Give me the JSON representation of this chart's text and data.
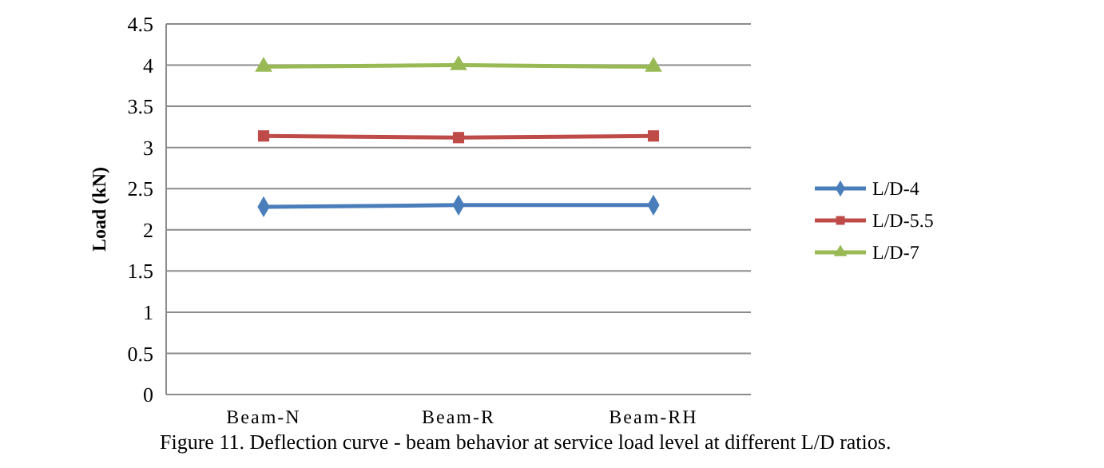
{
  "chart_data": {
    "type": "line",
    "title": "Figure 11. Deflection curve - beam behavior at service load level at different L/D ratios.",
    "ylabel": "Load (kN)",
    "categories": [
      "Beam-N",
      "Beam-R",
      "Beam-RH"
    ],
    "series": [
      {
        "name": "L/D-4",
        "color": "#4a7ebb",
        "marker": "diamond",
        "values": [
          2.28,
          2.3,
          2.3
        ]
      },
      {
        "name": "L/D-5.5",
        "color": "#be4b48",
        "marker": "square",
        "values": [
          3.14,
          3.12,
          3.14
        ]
      },
      {
        "name": "L/D-7",
        "color": "#98b954",
        "marker": "triangle",
        "values": [
          3.98,
          4.0,
          3.98
        ]
      }
    ],
    "ylim": [
      0,
      4.5
    ],
    "yticks": [
      0,
      0.5,
      1,
      1.5,
      2,
      2.5,
      3,
      3.5,
      4,
      4.5
    ],
    "grid": "y",
    "legend": "right"
  }
}
